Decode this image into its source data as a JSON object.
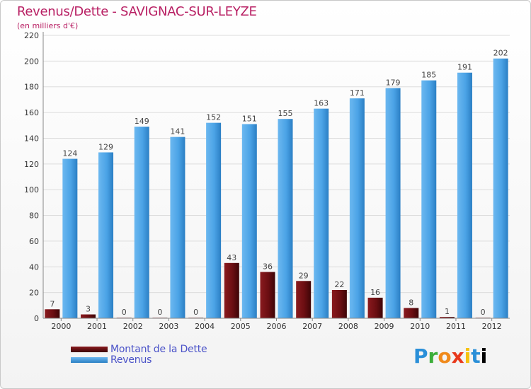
{
  "colors": {
    "title": "#b81f63",
    "debt_bar": "#6b0e12",
    "revenue_bar": "#4ba3e6",
    "legend_text": "#4a52c8"
  },
  "logo_text": "Proxiti",
  "chart_data": {
    "type": "bar",
    "title": "Revenus/Dette - SAVIGNAC-SUR-LEYZE",
    "subtitle": "(en milliers d'€)",
    "xlabel": "",
    "ylabel": "",
    "ylim": [
      0,
      220
    ],
    "yticks": [
      0,
      20,
      40,
      60,
      80,
      100,
      120,
      140,
      160,
      180,
      200,
      220
    ],
    "grid": true,
    "legend_position": "bottom-left",
    "categories": [
      "2000",
      "2001",
      "2002",
      "2003",
      "2004",
      "2005",
      "2006",
      "2007",
      "2008",
      "2009",
      "2010",
      "2011",
      "2012"
    ],
    "series": [
      {
        "name": "Montant de la Dette",
        "color": "#6b0e12",
        "values": [
          7,
          3,
          0,
          0,
          0,
          43,
          36,
          29,
          22,
          16,
          8,
          1,
          0
        ]
      },
      {
        "name": "Revenus",
        "color": "#4ba3e6",
        "values": [
          124,
          129,
          149,
          141,
          152,
          151,
          155,
          163,
          171,
          179,
          185,
          191,
          202
        ]
      }
    ]
  }
}
